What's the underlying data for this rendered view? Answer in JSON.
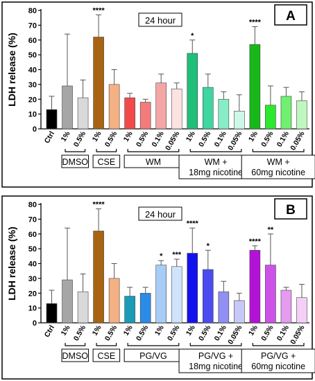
{
  "chart_data": [
    {
      "type": "bar",
      "panel_label": "A",
      "title": "24 hour",
      "ylabel": "LDH release (%)",
      "ylim": [
        0,
        80
      ],
      "yticks": [
        0,
        10,
        20,
        30,
        40,
        50,
        60,
        70,
        80
      ],
      "categories": [
        "Ctrl",
        "1%",
        "0.5%",
        "1%",
        "0.5%",
        "1%",
        "0.5%",
        "0.1%",
        "0.05%",
        "1%",
        "0.5%",
        "0.1%",
        "0.05%",
        "1%",
        "0.5%",
        "0.1%",
        "0.05%"
      ],
      "values": [
        13,
        29,
        21,
        62,
        30,
        21,
        18,
        31,
        27,
        51,
        28,
        20,
        12,
        57,
        16,
        22,
        19
      ],
      "errors": [
        9,
        35,
        12,
        15,
        10,
        3,
        2,
        6,
        4,
        9,
        9,
        5,
        11,
        12,
        13,
        6,
        6
      ],
      "significance": [
        "",
        "",
        "",
        "****",
        "",
        "",
        "",
        "",
        "",
        "*",
        "",
        "",
        "",
        "****",
        "",
        "",
        ""
      ],
      "colors": [
        "#000000",
        "#a6a6a6",
        "#d9d9d9",
        "#a86413",
        "#f4b183",
        "#f24a4a",
        "#f47b7b",
        "#f4a6a6",
        "#fde2e2",
        "#1fbf7a",
        "#3fd6a0",
        "#88edc6",
        "#cdf7e6",
        "#18b818",
        "#2ee82e",
        "#70f070",
        "#bff8bf"
      ],
      "groups": [
        {
          "label": "DMSO",
          "bars": [
            1,
            2
          ]
        },
        {
          "label": "CSE",
          "bars": [
            3,
            4
          ]
        },
        {
          "label": "WM",
          "bars": [
            5,
            8
          ]
        },
        {
          "label": "WM +\n18mg nicotine",
          "bars": [
            9,
            12
          ]
        },
        {
          "label": "WM +\n60mg nicotine",
          "bars": [
            13,
            16
          ]
        }
      ]
    },
    {
      "type": "bar",
      "panel_label": "B",
      "title": "24 hour",
      "ylabel": "LDH release (%)",
      "ylim": [
        0,
        80
      ],
      "yticks": [
        0,
        10,
        20,
        30,
        40,
        50,
        60,
        70,
        80
      ],
      "categories": [
        "Ctrl",
        "1%",
        "0.5%",
        "1%",
        "0.5%",
        "1%",
        "0.5%",
        "1%",
        "0.5%",
        "1%",
        "0.5%",
        "0.1%",
        "0.05%",
        "1%",
        "0.5%",
        "0.1%",
        "0.05%"
      ],
      "values": [
        13,
        29,
        21,
        62,
        30,
        18,
        20,
        39,
        38,
        47,
        36,
        21,
        15,
        49,
        39,
        22,
        17
      ],
      "errors": [
        9,
        35,
        12,
        15,
        10,
        6,
        4,
        3,
        5,
        17,
        13,
        7,
        5,
        3,
        21,
        2,
        9
      ],
      "significance": [
        "",
        "",
        "",
        "****",
        "",
        "",
        "",
        "*",
        "***",
        "****",
        "*",
        "",
        "",
        "****",
        "**",
        "",
        ""
      ],
      "colors": [
        "#000000",
        "#a6a6a6",
        "#d9d9d9",
        "#a86413",
        "#f4b183",
        "#1a9cb8",
        "#2a8be8",
        "#a7cdf6",
        "#cfe3fb",
        "#1212ee",
        "#4b4bf0",
        "#8f8ff4",
        "#c8c8f8",
        "#b312d6",
        "#cc52e8",
        "#e69af0",
        "#f5cff8"
      ],
      "groups": [
        {
          "label": "DMSO",
          "bars": [
            1,
            2
          ]
        },
        {
          "label": "CSE",
          "bars": [
            3,
            4
          ]
        },
        {
          "label": "PG/VG",
          "bars": [
            5,
            8
          ]
        },
        {
          "label": "PG/VG +\n18mg nicotine",
          "bars": [
            9,
            12
          ]
        },
        {
          "label": "PG/VG +\n60mg nicotine",
          "bars": [
            13,
            16
          ]
        }
      ]
    }
  ]
}
